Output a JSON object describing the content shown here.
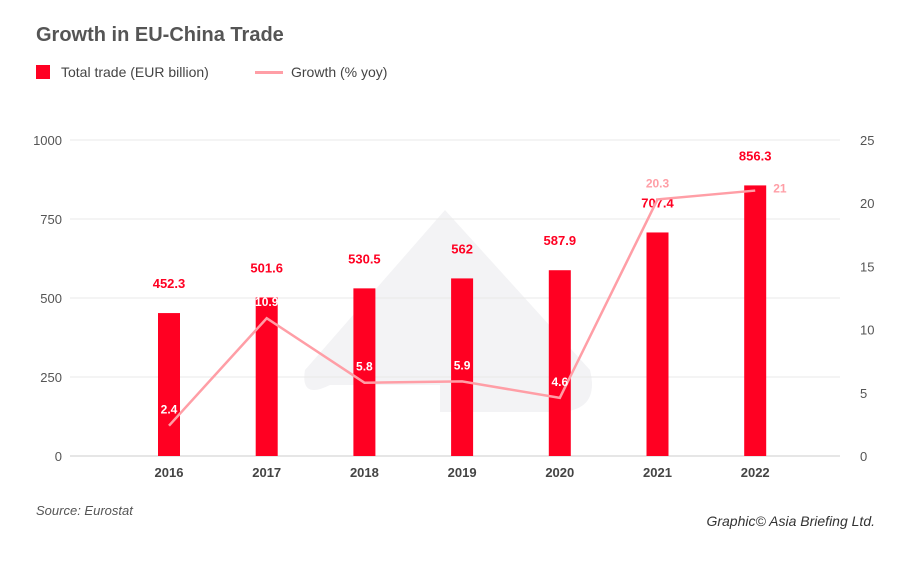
{
  "chart_data": {
    "type": "bar+line",
    "title": "Growth in EU-China Trade",
    "categories": [
      "2016",
      "2017",
      "2018",
      "2019",
      "2020",
      "2021",
      "2022"
    ],
    "series": [
      {
        "name": "Total trade (EUR billion)",
        "type": "bar",
        "axis": "left",
        "values": [
          452.3,
          501.6,
          530.5,
          562,
          587.9,
          707.4,
          856.3
        ],
        "labels": [
          "452.3",
          "501.6",
          "530.5",
          "562",
          "587.9",
          "707.4",
          "856.3"
        ],
        "color": "#ff0022"
      },
      {
        "name": "Growth (% yoy)",
        "type": "line",
        "axis": "right",
        "values": [
          2.4,
          10.9,
          5.8,
          5.9,
          4.6,
          20.3,
          21
        ],
        "labels": [
          "2.4",
          "10.9",
          "5.8",
          "5.9",
          "4.6",
          "20.3",
          "21"
        ],
        "color": "#ff9ea6"
      }
    ],
    "left_axis": {
      "range": [
        0,
        1000
      ],
      "ticks": [
        "0",
        "250",
        "500",
        "750",
        "1000"
      ]
    },
    "right_axis": {
      "range": [
        0,
        25
      ],
      "ticks": [
        "0",
        "5",
        "10",
        "15",
        "20",
        "25"
      ]
    },
    "grid": true,
    "legend": "top-left"
  },
  "source": "Source: Eurostat",
  "credit": "Graphic© Asia Briefing Ltd."
}
